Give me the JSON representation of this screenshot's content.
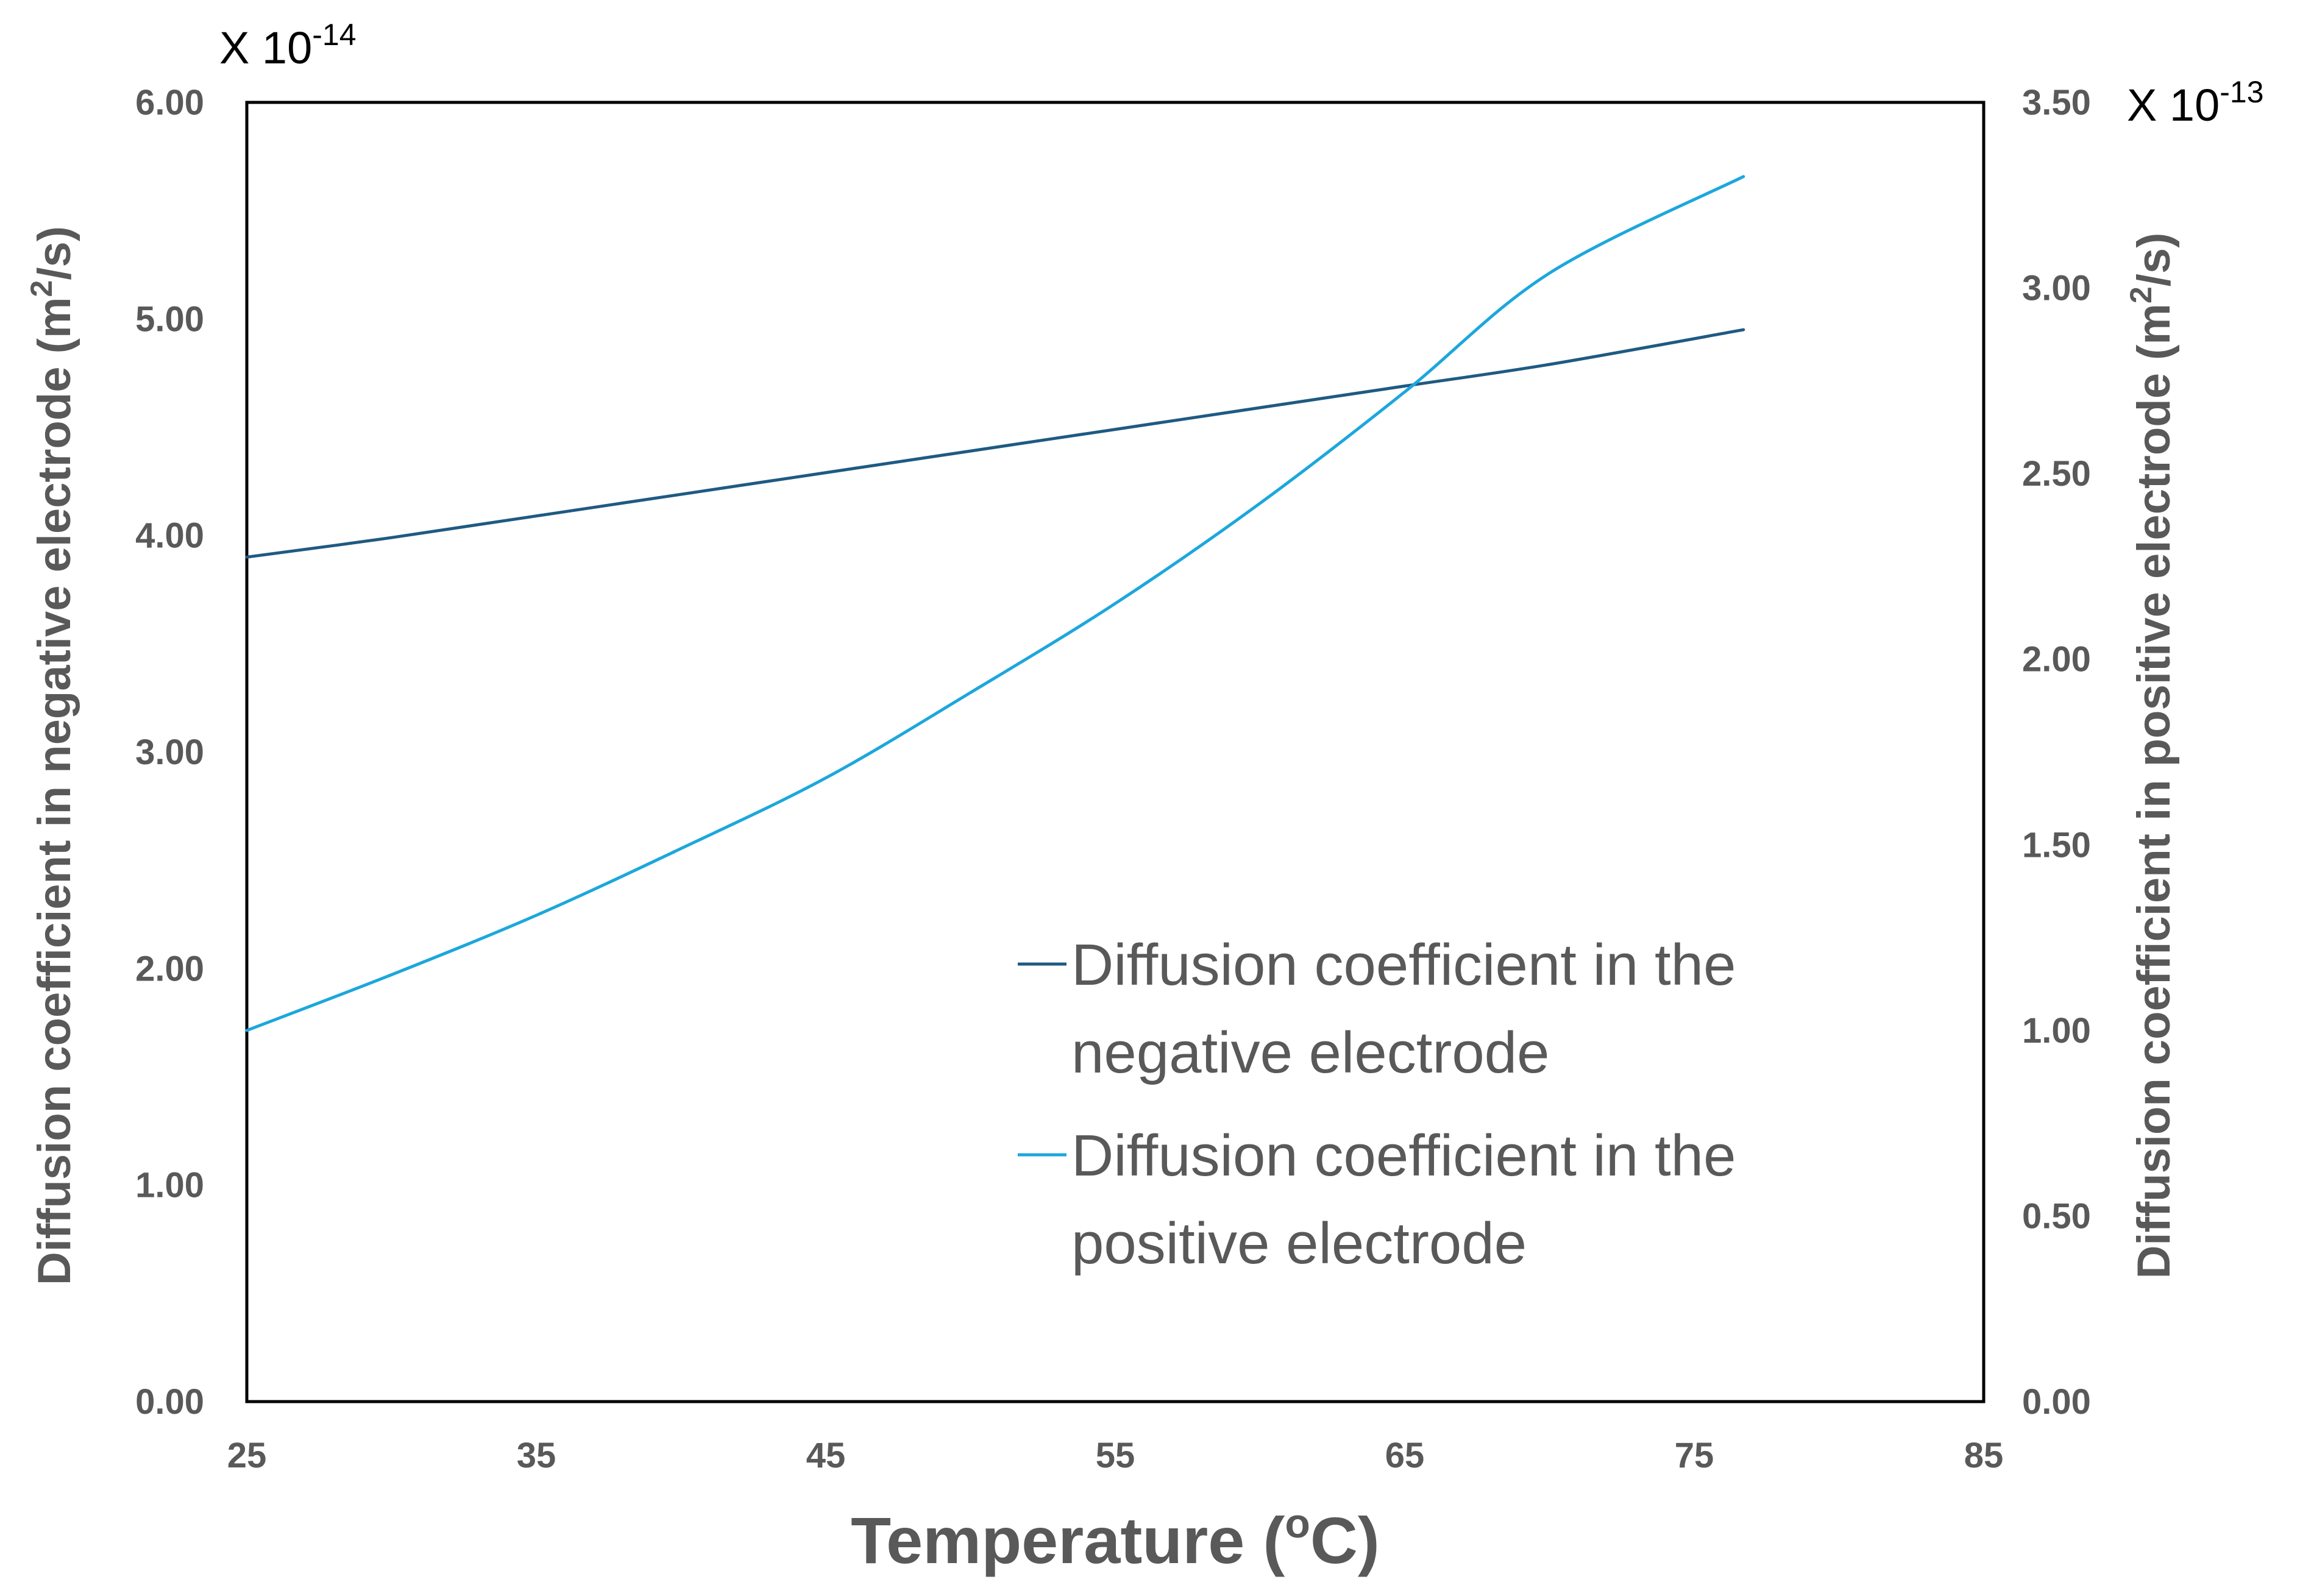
{
  "chart_data": {
    "type": "line",
    "title": "",
    "xlabel": "Temperature",
    "xlabel_unit_base": "C",
    "xlabel_unit_super": "o",
    "xlim": [
      25,
      85
    ],
    "x_ticks": [
      "25",
      "35",
      "45",
      "55",
      "65",
      "75",
      "85"
    ],
    "x_tick_values": [
      25,
      35,
      45,
      55,
      65,
      75,
      85
    ],
    "y_left": {
      "label_main": "Diffusion coefficient in negative electrode (m",
      "label_super": "2",
      "label_end": "/s)",
      "multiplier_prefix": "X 10",
      "multiplier_exp": "-14",
      "ylim": [
        0,
        6
      ],
      "ticks": [
        "0.00",
        "1.00",
        "2.00",
        "3.00",
        "4.00",
        "5.00",
        "6.00"
      ],
      "tick_values": [
        0,
        1,
        2,
        3,
        4,
        5,
        6
      ]
    },
    "y_right": {
      "label_main": "Diffusion coefficient in positive electrode (m",
      "label_super": "2",
      "label_end": "/s)",
      "multiplier_prefix": "X  10",
      "multiplier_exp": "-13",
      "ylim": [
        0,
        3.5
      ],
      "ticks": [
        "0.00",
        "0.50",
        "1.00",
        "1.50",
        "2.00",
        "2.50",
        "3.00",
        "3.50"
      ],
      "tick_values": [
        0,
        0.5,
        1,
        1.5,
        2,
        2.5,
        3,
        3.5
      ]
    },
    "series": [
      {
        "name_line1": "Diffusion coefficient in the",
        "name_line2": "negative electrode",
        "axis": "left",
        "color": "#1F5A82",
        "x": [
          25,
          30,
          35,
          40,
          45,
          50,
          55,
          60,
          65,
          70,
          76.7
        ],
        "values": [
          3.9,
          3.99,
          4.09,
          4.19,
          4.29,
          4.39,
          4.49,
          4.59,
          4.69,
          4.79,
          4.95
        ]
      },
      {
        "name_line1": "Diffusion coefficient in the",
        "name_line2": "positive electrode",
        "axis": "right",
        "color": "#1CA7DC",
        "x": [
          25,
          30,
          35,
          40,
          45,
          50,
          55,
          60,
          65,
          70,
          76.7
        ],
        "values": [
          1.0,
          1.15,
          1.31,
          1.49,
          1.68,
          1.91,
          2.15,
          2.42,
          2.72,
          3.04,
          3.3
        ]
      }
    ],
    "legend_position": "lower-right inside plot",
    "grid": false
  }
}
